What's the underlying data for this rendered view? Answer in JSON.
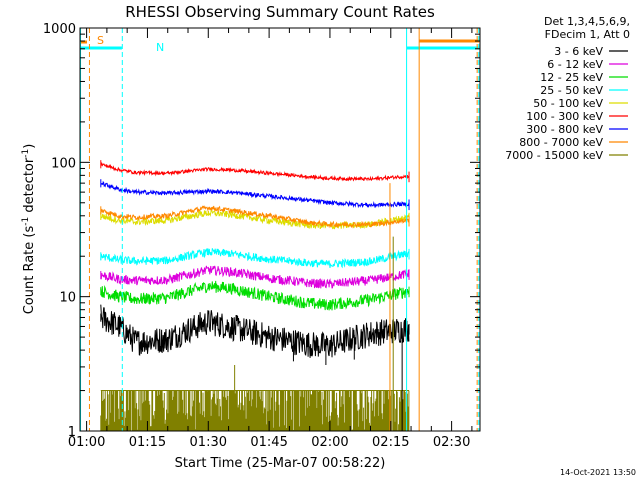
{
  "chart_data": {
    "type": "line",
    "title": "RHESSI Observing Summary Count Rates",
    "xlabel": "Start Time (25-Mar-07 00:58:22)",
    "ylabel_main": "Count Rate (s",
    "ylabel_sup1": "-1",
    "ylabel_mid": " detector",
    "ylabel_sup2": "-1",
    "ylabel_end": ")",
    "yscale": "log",
    "ylim": [
      1,
      1000
    ],
    "xlim_minutes": [
      58.37,
      157.0
    ],
    "x_unit": "minutes after 00:00 UT",
    "x_ticks": [
      {
        "label": "01:00",
        "value": 60
      },
      {
        "label": "01:15",
        "value": 75
      },
      {
        "label": "01:30",
        "value": 90
      },
      {
        "label": "01:45",
        "value": 105
      },
      {
        "label": "02:00",
        "value": 120
      },
      {
        "label": "02:15",
        "value": 135
      },
      {
        "label": "02:30",
        "value": 150
      }
    ],
    "y_ticks": [
      {
        "label": "1",
        "value": 1
      },
      {
        "label": "10",
        "value": 10
      },
      {
        "label": "100",
        "value": 100
      },
      {
        "label": "1000",
        "value": 1000
      }
    ],
    "legend_header": [
      "Det 1,3,4,5,6,9,",
      "FDecim 1, Att 0"
    ],
    "legend_position": "outside-right",
    "data_window_minutes": [
      63.5,
      139.5
    ],
    "series": [
      {
        "name": "3 - 6 keV",
        "color": "#000000",
        "noise": 0.1,
        "points": [
          [
            63.5,
            7
          ],
          [
            68,
            6
          ],
          [
            72,
            4.6
          ],
          [
            80,
            4.8
          ],
          [
            90,
            6.5
          ],
          [
            95,
            6
          ],
          [
            105,
            5
          ],
          [
            115,
            4.4
          ],
          [
            120,
            4.3
          ],
          [
            130,
            5.3
          ],
          [
            139.5,
            5.8
          ]
        ]
      },
      {
        "name": "6 - 12 keV",
        "color": "#dd00dd",
        "noise": 0.035,
        "points": [
          [
            63.5,
            14.5
          ],
          [
            68,
            13.5
          ],
          [
            72,
            13.2
          ],
          [
            80,
            13.3
          ],
          [
            90,
            15.8
          ],
          [
            95,
            15.4
          ],
          [
            105,
            13.7
          ],
          [
            115,
            12.6
          ],
          [
            120,
            12.4
          ],
          [
            130,
            13.2
          ],
          [
            139.5,
            14.8
          ]
        ]
      },
      {
        "name": "12 - 25 keV",
        "color": "#00dd00",
        "noise": 0.045,
        "points": [
          [
            63.5,
            11
          ],
          [
            68,
            10
          ],
          [
            72,
            9.6
          ],
          [
            80,
            9.8
          ],
          [
            90,
            12
          ],
          [
            95,
            11.6
          ],
          [
            105,
            10
          ],
          [
            115,
            8.9
          ],
          [
            120,
            8.7
          ],
          [
            130,
            9.5
          ],
          [
            139.5,
            11
          ]
        ]
      },
      {
        "name": "25 - 50 keV",
        "color": "#00ffff",
        "noise": 0.03,
        "points": [
          [
            63.5,
            20
          ],
          [
            68,
            18.8
          ],
          [
            72,
            18.4
          ],
          [
            80,
            18.6
          ],
          [
            90,
            21.5
          ],
          [
            95,
            21
          ],
          [
            105,
            19
          ],
          [
            115,
            17.8
          ],
          [
            120,
            17.5
          ],
          [
            130,
            18.3
          ],
          [
            139.5,
            21
          ]
        ]
      },
      {
        "name": "50 - 100 keV",
        "color": "#dddd00",
        "noise": 0.025,
        "points": [
          [
            63.5,
            40
          ],
          [
            68,
            37
          ],
          [
            72,
            36
          ],
          [
            80,
            37
          ],
          [
            90,
            42
          ],
          [
            95,
            41
          ],
          [
            105,
            37
          ],
          [
            115,
            34
          ],
          [
            120,
            33.5
          ],
          [
            130,
            34.5
          ],
          [
            139.5,
            39
          ]
        ]
      },
      {
        "name": "100 - 300 keV",
        "color": "#ff0000",
        "noise": 0.012,
        "points": [
          [
            63.5,
            97
          ],
          [
            68,
            88
          ],
          [
            72,
            84
          ],
          [
            80,
            83
          ],
          [
            90,
            89
          ],
          [
            95,
            88
          ],
          [
            105,
            83
          ],
          [
            115,
            78
          ],
          [
            120,
            76
          ],
          [
            130,
            75
          ],
          [
            139.5,
            79
          ]
        ]
      },
      {
        "name": "300 - 800 keV",
        "color": "#0000ff",
        "noise": 0.015,
        "points": [
          [
            63.5,
            70
          ],
          [
            68,
            63
          ],
          [
            72,
            60
          ],
          [
            80,
            59
          ],
          [
            90,
            61
          ],
          [
            95,
            60
          ],
          [
            105,
            56
          ],
          [
            115,
            52
          ],
          [
            120,
            50
          ],
          [
            130,
            48
          ],
          [
            139.5,
            49
          ]
        ]
      },
      {
        "name": "800 - 7000 keV",
        "color": "#ff8800",
        "noise": 0.018,
        "points": [
          [
            63.5,
            44
          ],
          [
            68,
            40
          ],
          [
            72,
            39
          ],
          [
            80,
            40
          ],
          [
            90,
            46
          ],
          [
            95,
            44
          ],
          [
            105,
            40
          ],
          [
            115,
            35.5
          ],
          [
            120,
            34.5
          ],
          [
            130,
            34.5
          ],
          [
            139.5,
            37
          ]
        ]
      },
      {
        "name": "7000 - 15000 keV",
        "color": "#808000",
        "noise": 0,
        "points": [
          [
            63.5,
            2
          ],
          [
            139.5,
            2
          ]
        ]
      }
    ],
    "annotations": [
      {
        "label": "S",
        "color": "#ff8800"
      },
      {
        "label": "N",
        "color": "#00ffff"
      }
    ]
  },
  "footer_date": "14-Oct-2021 13:50"
}
